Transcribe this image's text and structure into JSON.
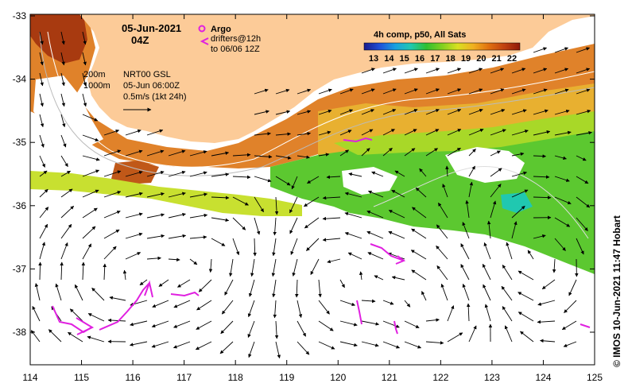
{
  "header": {
    "date": "05-Jun-2021",
    "time": "04Z"
  },
  "legend": {
    "argo_label": "Argo",
    "drifters_line1": "drifters@12h",
    "drifters_line2": "to 06/06 12Z",
    "argo_color": "#e020e0",
    "drifter_color": "#e020e0"
  },
  "isobaths": {
    "depth1": "200m",
    "depth2": "1000m"
  },
  "currents": {
    "product": "NRT00 GSL",
    "valid": "05-Jun 06:00Z",
    "scale": "0.5m/s (1kt 24h)"
  },
  "colorbar": {
    "title": "4h comp, p50, All Sats",
    "ticks": [
      "13",
      "14",
      "15",
      "16",
      "17",
      "18",
      "19",
      "20",
      "21",
      "22"
    ],
    "colors": [
      "#1a1a8c",
      "#1f4fd8",
      "#1aa0e0",
      "#20c8b0",
      "#30c030",
      "#80d020",
      "#d8e020",
      "#f0b020",
      "#e07010",
      "#c04010",
      "#901808"
    ]
  },
  "axes": {
    "x_ticks": [
      "114",
      "115",
      "116",
      "117",
      "118",
      "119",
      "120",
      "121",
      "122",
      "123",
      "124",
      "125"
    ],
    "y_ticks": [
      "-33",
      "-34",
      "-35",
      "-36",
      "-37",
      "-38"
    ]
  },
  "credit": "© IMOS 10-Jun-2021 11:47 Hobart",
  "land_color": "#fccb98"
}
